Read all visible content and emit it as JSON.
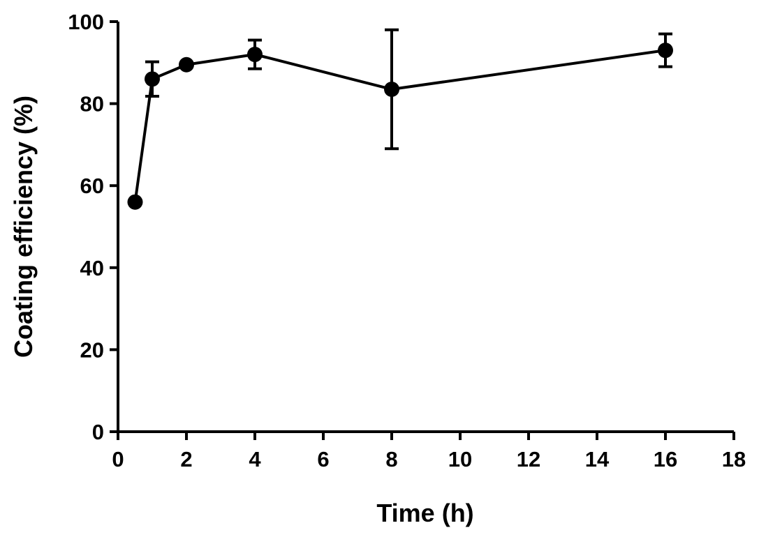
{
  "chart_data": {
    "type": "line",
    "title": "",
    "xlabel": "Time (h)",
    "ylabel": "Coating efficiency (%)",
    "xlim": [
      0,
      18
    ],
    "ylim": [
      0,
      100
    ],
    "x_ticks": [
      0,
      2,
      4,
      6,
      8,
      10,
      12,
      14,
      16,
      18
    ],
    "y_ticks": [
      0,
      20,
      40,
      60,
      80,
      100
    ],
    "grid": false,
    "legend": "none",
    "color": "#000000",
    "series": [
      {
        "x": [
          0.5,
          1,
          2,
          4,
          8,
          16
        ],
        "y": [
          56,
          86,
          89.5,
          92,
          83.5,
          93
        ],
        "error": [
          0,
          4.2,
          0,
          3.5,
          14.5,
          4
        ]
      }
    ]
  }
}
